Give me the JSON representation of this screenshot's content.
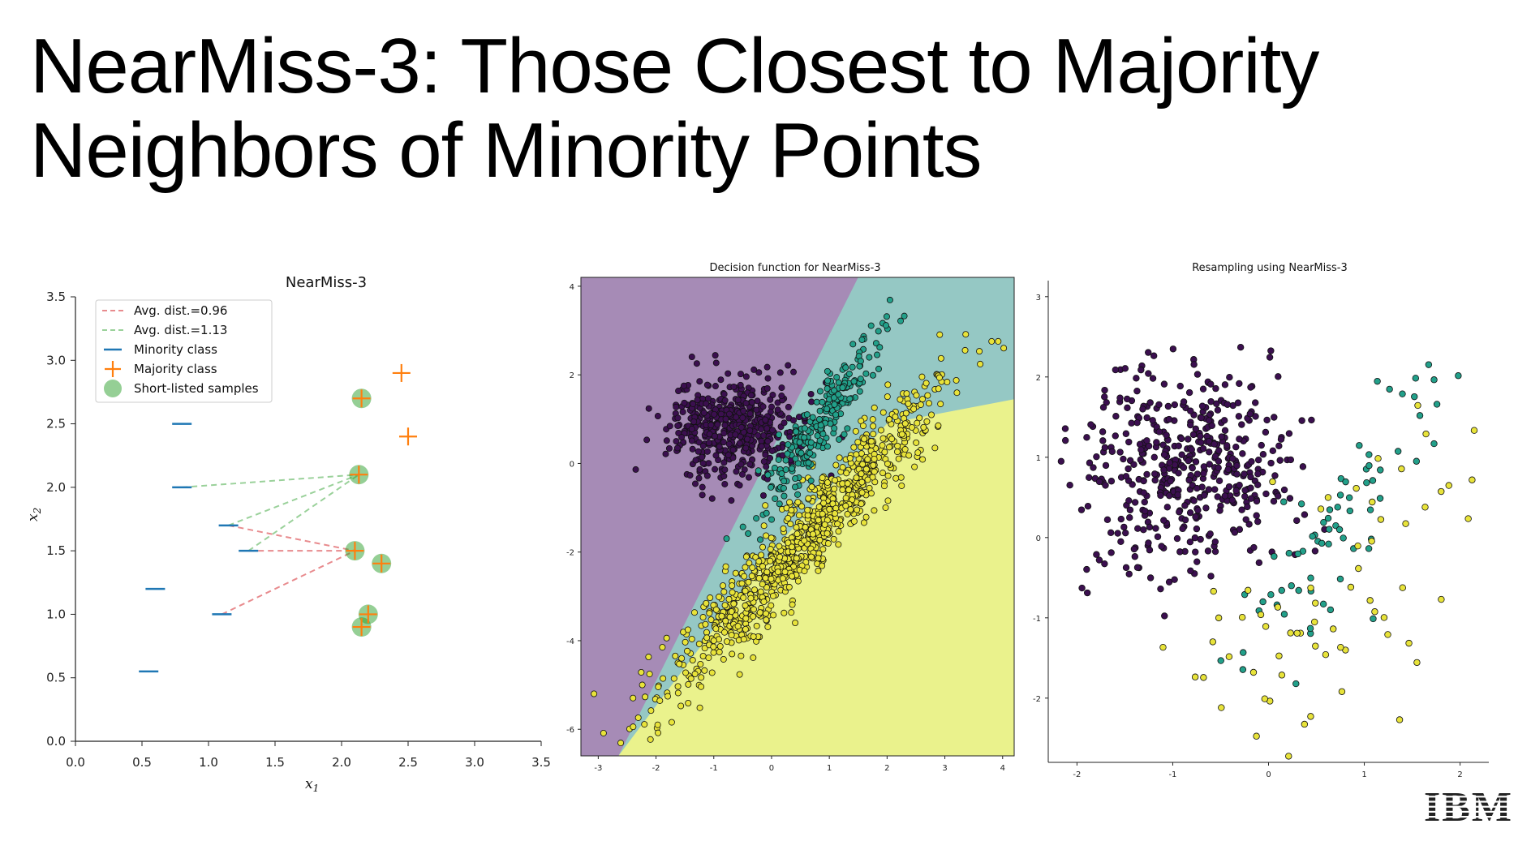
{
  "slide": {
    "title_line1": "NearMiss-3: Those Closest to Majority",
    "title_line2": "Neighbors of Minority Points",
    "logo_text": "IBM"
  },
  "chart_data": [
    {
      "type": "scatter",
      "title": "NearMiss-3",
      "xlabel": "x1",
      "ylabel": "x2",
      "xlim": [
        0.0,
        3.5
      ],
      "ylim": [
        0.0,
        3.5
      ],
      "xticks": [
        "0.0",
        "0.5",
        "1.0",
        "1.5",
        "2.0",
        "2.5",
        "3.0",
        "3.5"
      ],
      "yticks": [
        "0.0",
        "0.5",
        "1.0",
        "1.5",
        "2.0",
        "2.5",
        "3.0",
        "3.5"
      ],
      "legend": {
        "placement": "upper-left",
        "entries": [
          "Avg. dist.=0.96",
          "Avg. dist.=1.13",
          "Minority class",
          "Majority class",
          "Short-listed samples"
        ]
      },
      "colors": {
        "minority": "#1f77b4",
        "majority": "#ff7f0e",
        "shortlisted": "#2ca02c",
        "red_link": "#d62728",
        "green_link": "#2ca02c"
      },
      "minority": [
        [
          0.8,
          2.5
        ],
        [
          0.8,
          2.0
        ],
        [
          1.15,
          1.7
        ],
        [
          1.3,
          1.5
        ],
        [
          0.6,
          1.2
        ],
        [
          1.1,
          1.0
        ],
        [
          0.55,
          0.55
        ]
      ],
      "majority": [
        [
          2.45,
          2.9
        ],
        [
          2.5,
          2.4
        ],
        [
          2.15,
          2.7
        ],
        [
          2.13,
          2.1
        ],
        [
          2.1,
          1.5
        ],
        [
          2.3,
          1.4
        ],
        [
          2.2,
          1.0
        ],
        [
          2.15,
          0.9
        ]
      ],
      "shortlisted": [
        [
          2.15,
          2.7
        ],
        [
          2.13,
          2.1
        ],
        [
          2.1,
          1.5
        ],
        [
          2.3,
          1.4
        ],
        [
          2.2,
          1.0
        ],
        [
          2.15,
          0.9
        ]
      ],
      "red_links": [
        [
          [
            1.15,
            1.7
          ],
          [
            2.1,
            1.5
          ]
        ],
        [
          [
            1.3,
            1.5
          ],
          [
            2.1,
            1.5
          ]
        ],
        [
          [
            1.1,
            1.0
          ],
          [
            2.1,
            1.5
          ]
        ]
      ],
      "green_links": [
        [
          [
            0.8,
            2.0
          ],
          [
            2.13,
            2.1
          ]
        ],
        [
          [
            1.15,
            1.7
          ],
          [
            2.13,
            2.1
          ]
        ],
        [
          [
            1.3,
            1.5
          ],
          [
            2.13,
            2.1
          ]
        ]
      ]
    },
    {
      "type": "scatter",
      "title": "Decision function for NearMiss-3",
      "xlim": [
        -3.3,
        4.2
      ],
      "ylim": [
        -6.6,
        4.2
      ],
      "xticks": [
        "-3",
        "-2",
        "-1",
        "0",
        "1",
        "2",
        "3",
        "4"
      ],
      "yticks": [
        "-6",
        "-4",
        "-2",
        "0",
        "2",
        "4"
      ],
      "grid": false,
      "colors": {
        "region_purple": "#a68bb6",
        "region_teal": "#95c8c4",
        "region_yellow": "#eaf28c",
        "class0": "#3b0f4f",
        "class1": "#22a08a",
        "class2": "#e8e33a"
      },
      "regions": {
        "purple_teal_boundary": [
          [
            -2.65,
            -6.6
          ],
          [
            1.5,
            4.2
          ]
        ],
        "yellow_boundary": [
          [
            -2.65,
            -6.6
          ],
          [
            0.0,
            -2.0
          ],
          [
            2.0,
            0.9
          ],
          [
            4.2,
            1.45
          ]
        ]
      },
      "clusters": [
        {
          "name": "",
          "color": "class0",
          "center": [
            -0.7,
            0.8
          ],
          "spread": [
            0.55,
            0.55
          ],
          "n": 500
        },
        {
          "name": "",
          "color": "class2",
          "center": [
            0.6,
            -1.6
          ],
          "direction": [
            2.2,
            3.3
          ],
          "length": 4.8,
          "width": 0.3,
          "n": 900
        },
        {
          "name": "",
          "color": "class1",
          "center": [
            0.8,
            0.8
          ],
          "direction": [
            1.2,
            2.4
          ],
          "length": 2.4,
          "width": 0.18,
          "n": 250
        }
      ]
    },
    {
      "type": "scatter",
      "title": "Resampling using NearMiss-3",
      "xlim": [
        -2.3,
        2.3
      ],
      "ylim": [
        -2.8,
        3.2
      ],
      "xticks": [
        "-2",
        "-1",
        "0",
        "1",
        "2"
      ],
      "yticks": [
        "-2",
        "-1",
        "0",
        "1",
        "2",
        "3"
      ],
      "colors": {
        "class0": "#3b0f4f",
        "class1": "#22a08a",
        "class2": "#e8e33a"
      },
      "clusters": [
        {
          "name": "",
          "color": "class0",
          "center": [
            -0.9,
            0.9
          ],
          "spread": [
            0.55,
            0.6
          ],
          "n": 480
        },
        {
          "name": "",
          "color": "class1",
          "center": [
            0.6,
            0.0
          ],
          "direction": [
            0.8,
            1.7
          ],
          "length": 2.5,
          "width": 0.25,
          "n": 70
        },
        {
          "name": "",
          "color": "class2",
          "center": [
            0.8,
            -0.6
          ],
          "direction": [
            1.0,
            1.5
          ],
          "length": 3.2,
          "width": 0.55,
          "n": 70
        }
      ]
    }
  ]
}
